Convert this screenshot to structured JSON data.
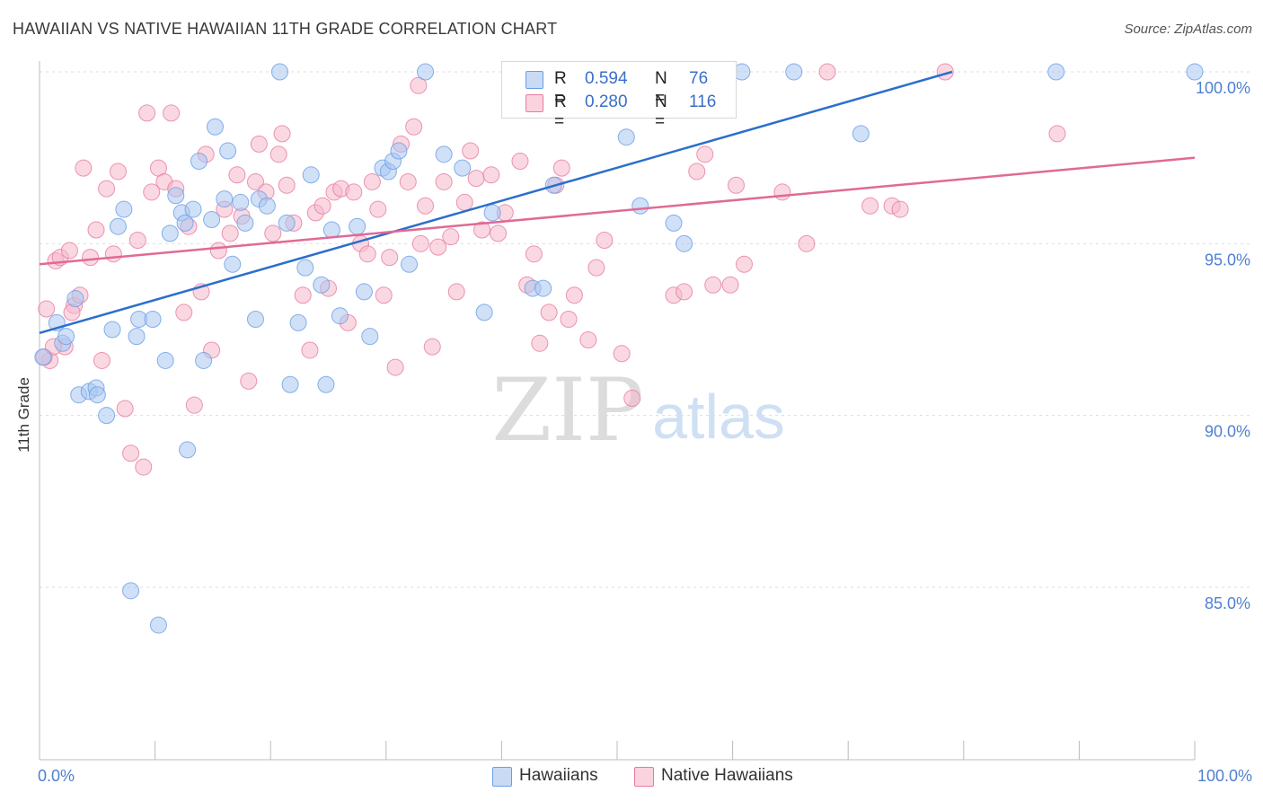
{
  "title": "HAWAIIAN VS NATIVE HAWAIIAN 11TH GRADE CORRELATION CHART",
  "source": "Source: ZipAtlas.com",
  "watermark": {
    "zip": "ZIP",
    "atlas": "atlas"
  },
  "legend": {
    "series": [
      {
        "r_label": "R =",
        "r_value": "0.594",
        "n_label": "N =",
        "n_value": "76",
        "color": "#a9c6f0"
      },
      {
        "r_label": "R =",
        "r_value": "0.280",
        "n_label": "N =",
        "n_value": "116",
        "color": "#f6b8cb"
      }
    ]
  },
  "bottom_legend": [
    {
      "label": "Hawaiians",
      "color": "#a9c6f0"
    },
    {
      "label": "Native Hawaiians",
      "color": "#f6b8cb"
    }
  ],
  "chart_data": {
    "type": "scatter",
    "title": "HAWAIIAN VS NATIVE HAWAIIAN 11TH GRADE CORRELATION CHART",
    "xlabel": "",
    "ylabel": "11th Grade",
    "xlim": [
      0,
      100
    ],
    "ylim": [
      80.5,
      100.7
    ],
    "x_tick_labels": [
      {
        "value": 0,
        "label": "0.0%"
      },
      {
        "value": 100,
        "label": "100.0%"
      }
    ],
    "y_tick_labels": [
      {
        "value": 100,
        "label": "100.0%"
      },
      {
        "value": 95,
        "label": "95.0%"
      },
      {
        "value": 90,
        "label": "90.0%"
      },
      {
        "value": 85,
        "label": "85.0%"
      }
    ],
    "grid": true,
    "series": [
      {
        "name": "Hawaiians",
        "color": "#6a9ee6",
        "fill": "#a9c6f0",
        "trend": {
          "x": [
            0,
            79
          ],
          "y": [
            92.4,
            100
          ]
        },
        "points": [
          [
            0.3,
            91.7
          ],
          [
            1.5,
            92.7
          ],
          [
            2.0,
            92.1
          ],
          [
            2.3,
            92.3
          ],
          [
            3.1,
            93.4
          ],
          [
            3.4,
            90.6
          ],
          [
            4.3,
            90.7
          ],
          [
            4.9,
            90.8
          ],
          [
            5.0,
            90.6
          ],
          [
            5.8,
            90.0
          ],
          [
            6.3,
            92.5
          ],
          [
            6.8,
            95.5
          ],
          [
            7.3,
            96.0
          ],
          [
            7.9,
            84.9
          ],
          [
            8.4,
            92.3
          ],
          [
            8.6,
            92.8
          ],
          [
            9.8,
            92.8
          ],
          [
            10.3,
            83.9
          ],
          [
            10.9,
            91.6
          ],
          [
            11.3,
            95.3
          ],
          [
            11.8,
            96.4
          ],
          [
            12.3,
            95.9
          ],
          [
            12.6,
            95.6
          ],
          [
            12.8,
            89.0
          ],
          [
            13.3,
            96.0
          ],
          [
            13.8,
            97.4
          ],
          [
            14.2,
            91.6
          ],
          [
            14.9,
            95.7
          ],
          [
            15.2,
            98.4
          ],
          [
            16.0,
            96.3
          ],
          [
            16.3,
            97.7
          ],
          [
            16.7,
            94.4
          ],
          [
            17.4,
            96.2
          ],
          [
            17.8,
            95.6
          ],
          [
            18.7,
            92.8
          ],
          [
            19.0,
            96.3
          ],
          [
            19.7,
            96.1
          ],
          [
            20.8,
            100.0
          ],
          [
            21.4,
            95.6
          ],
          [
            21.7,
            90.9
          ],
          [
            22.4,
            92.7
          ],
          [
            23.0,
            94.3
          ],
          [
            23.5,
            97.0
          ],
          [
            24.4,
            93.8
          ],
          [
            24.8,
            90.9
          ],
          [
            25.3,
            95.4
          ],
          [
            26.0,
            92.9
          ],
          [
            27.5,
            95.5
          ],
          [
            28.1,
            93.6
          ],
          [
            28.6,
            92.3
          ],
          [
            29.7,
            97.2
          ],
          [
            30.2,
            97.1
          ],
          [
            30.6,
            97.4
          ],
          [
            31.1,
            97.7
          ],
          [
            32.0,
            94.4
          ],
          [
            33.4,
            100.0
          ],
          [
            35.0,
            97.6
          ],
          [
            36.6,
            97.2
          ],
          [
            38.5,
            93.0
          ],
          [
            39.2,
            95.9
          ],
          [
            42.7,
            93.7
          ],
          [
            43.6,
            93.7
          ],
          [
            44.5,
            96.7
          ],
          [
            45.0,
            100.0
          ],
          [
            46.0,
            100.0
          ],
          [
            47.4,
            100.0
          ],
          [
            48.2,
            100.0
          ],
          [
            50.8,
            98.1
          ],
          [
            52.0,
            96.1
          ],
          [
            54.9,
            95.6
          ],
          [
            55.8,
            95.0
          ],
          [
            60.8,
            100.0
          ],
          [
            65.3,
            100.0
          ],
          [
            71.1,
            98.2
          ],
          [
            88.0,
            100.0
          ],
          [
            100.0,
            100.0
          ]
        ]
      },
      {
        "name": "Native Hawaiians",
        "color": "#e77aa0",
        "fill": "#f6b8cb",
        "trend": {
          "x": [
            0,
            100
          ],
          "y": [
            94.4,
            97.5
          ]
        },
        "points": [
          [
            0.6,
            93.1
          ],
          [
            0.9,
            91.6
          ],
          [
            1.4,
            94.5
          ],
          [
            1.8,
            94.6
          ],
          [
            2.2,
            92.0
          ],
          [
            2.6,
            94.8
          ],
          [
            3.0,
            93.2
          ],
          [
            3.5,
            93.5
          ],
          [
            3.8,
            97.2
          ],
          [
            4.4,
            94.6
          ],
          [
            4.9,
            95.4
          ],
          [
            5.4,
            91.6
          ],
          [
            5.8,
            96.6
          ],
          [
            6.4,
            94.7
          ],
          [
            6.8,
            97.1
          ],
          [
            7.4,
            90.2
          ],
          [
            7.9,
            88.9
          ],
          [
            8.5,
            95.1
          ],
          [
            9.0,
            88.5
          ],
          [
            9.3,
            98.8
          ],
          [
            9.7,
            96.5
          ],
          [
            10.3,
            97.2
          ],
          [
            10.8,
            96.8
          ],
          [
            11.4,
            98.8
          ],
          [
            11.8,
            96.6
          ],
          [
            12.5,
            93.0
          ],
          [
            12.9,
            95.5
          ],
          [
            13.4,
            90.3
          ],
          [
            14.0,
            93.6
          ],
          [
            14.4,
            97.6
          ],
          [
            14.9,
            91.9
          ],
          [
            15.5,
            94.8
          ],
          [
            16.0,
            96.0
          ],
          [
            16.5,
            95.3
          ],
          [
            17.1,
            97.0
          ],
          [
            17.5,
            95.8
          ],
          [
            18.1,
            91.0
          ],
          [
            18.7,
            96.8
          ],
          [
            19.0,
            97.9
          ],
          [
            19.6,
            96.5
          ],
          [
            20.2,
            95.3
          ],
          [
            20.7,
            97.6
          ],
          [
            21.0,
            98.2
          ],
          [
            21.4,
            96.7
          ],
          [
            22.0,
            95.6
          ],
          [
            22.8,
            93.5
          ],
          [
            23.4,
            91.9
          ],
          [
            23.9,
            95.9
          ],
          [
            24.5,
            96.1
          ],
          [
            25.0,
            93.7
          ],
          [
            25.5,
            96.5
          ],
          [
            26.1,
            96.6
          ],
          [
            26.7,
            92.7
          ],
          [
            27.2,
            96.5
          ],
          [
            27.8,
            95.0
          ],
          [
            28.4,
            94.7
          ],
          [
            28.8,
            96.8
          ],
          [
            29.3,
            96.0
          ],
          [
            29.8,
            93.5
          ],
          [
            30.3,
            94.6
          ],
          [
            30.8,
            91.4
          ],
          [
            31.3,
            97.9
          ],
          [
            31.9,
            96.8
          ],
          [
            32.4,
            98.4
          ],
          [
            33.0,
            95.0
          ],
          [
            33.4,
            96.1
          ],
          [
            34.0,
            92.0
          ],
          [
            34.5,
            94.9
          ],
          [
            35.0,
            96.8
          ],
          [
            35.6,
            95.2
          ],
          [
            36.1,
            93.6
          ],
          [
            36.8,
            96.2
          ],
          [
            37.3,
            97.7
          ],
          [
            37.8,
            96.9
          ],
          [
            38.3,
            95.4
          ],
          [
            39.1,
            97.0
          ],
          [
            39.7,
            95.3
          ],
          [
            40.3,
            95.9
          ],
          [
            41.0,
            100.0
          ],
          [
            41.6,
            97.4
          ],
          [
            42.2,
            93.8
          ],
          [
            42.8,
            94.7
          ],
          [
            43.3,
            92.1
          ],
          [
            44.1,
            93.0
          ],
          [
            44.7,
            96.7
          ],
          [
            45.2,
            97.2
          ],
          [
            45.8,
            92.8
          ],
          [
            46.3,
            93.5
          ],
          [
            46.9,
            100.0
          ],
          [
            47.5,
            92.2
          ],
          [
            48.2,
            94.3
          ],
          [
            48.9,
            95.1
          ],
          [
            50.4,
            91.8
          ],
          [
            51.3,
            90.5
          ],
          [
            53.4,
            100.0
          ],
          [
            54.9,
            93.5
          ],
          [
            55.8,
            93.6
          ],
          [
            56.9,
            97.1
          ],
          [
            57.6,
            97.6
          ],
          [
            58.3,
            93.8
          ],
          [
            59.0,
            100.0
          ],
          [
            59.8,
            93.8
          ],
          [
            60.3,
            96.7
          ],
          [
            61.0,
            94.4
          ],
          [
            64.3,
            96.5
          ],
          [
            66.4,
            95.0
          ],
          [
            68.2,
            100.0
          ],
          [
            71.9,
            96.1
          ],
          [
            73.8,
            96.1
          ],
          [
            74.5,
            96.0
          ],
          [
            78.4,
            100.0
          ],
          [
            88.1,
            98.2
          ],
          [
            0.4,
            91.7
          ],
          [
            1.2,
            92.0
          ],
          [
            2.8,
            93.0
          ],
          [
            32.8,
            99.6
          ],
          [
            44.3,
            100.0
          ]
        ]
      }
    ]
  }
}
